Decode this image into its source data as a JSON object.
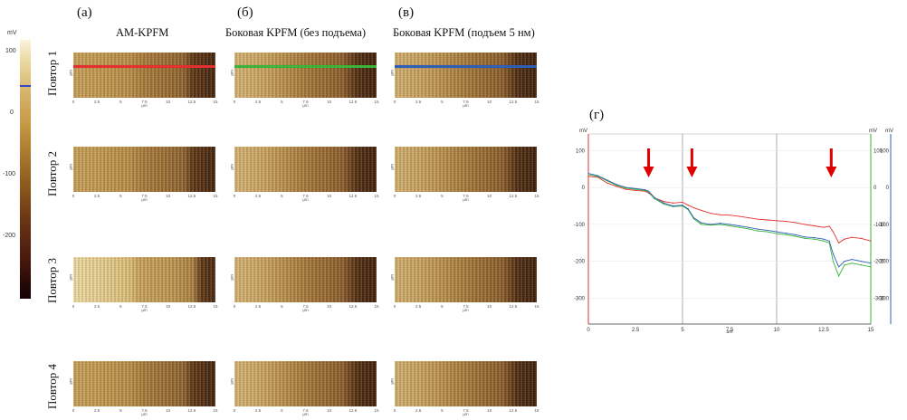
{
  "panels": {
    "a": "(а)",
    "b": "(б)",
    "c": "(в)",
    "d": "(г)"
  },
  "columns": [
    {
      "title": "AM-KPFM"
    },
    {
      "title": "Боковая KPFM (без подъема)"
    },
    {
      "title": "Боковая KPFM (подъем 5 нм)"
    }
  ],
  "rows": [
    {
      "label": "Повтор 1"
    },
    {
      "label": "Повтор 2"
    },
    {
      "label": "Повтор 3"
    },
    {
      "label": "Повтор 4"
    }
  ],
  "colorbar": {
    "unit": "mV",
    "ticks": [
      "100",
      "0",
      "-100",
      "-200"
    ],
    "values": [
      100,
      0,
      -100,
      -200
    ],
    "range": [
      -300,
      120
    ],
    "marker_value": 47,
    "marker_color": "#3344cc"
  },
  "scan_axis": {
    "unit": "μm",
    "ticks": [
      "0",
      "2.5",
      "5",
      "7.5",
      "10",
      "12.5",
      "15"
    ]
  },
  "profile_colors": [
    "#e53030",
    "#3ab53a",
    "#2f5fb8"
  ],
  "arrow_color": "#e00000",
  "chart_data": {
    "type": "line",
    "title": "(г)",
    "xlabel": "μm",
    "xlim": [
      0,
      15
    ],
    "xticks": [
      "0",
      "2.5",
      "5",
      "7.5",
      "10",
      "12.5",
      "15"
    ],
    "grid": true,
    "y_axes": [
      {
        "side": "left",
        "unit": "mV",
        "color": "#e53030",
        "ylim": [
          -370,
          145
        ],
        "ticks": [
          "100",
          "0",
          "-100",
          "-200",
          "-300"
        ]
      },
      {
        "side": "right",
        "unit": "mV",
        "color": "#3ab53a",
        "ylim": [
          -370,
          145
        ],
        "ticks": [
          "100",
          "0",
          "-100",
          "-200",
          "-300"
        ]
      },
      {
        "side": "right-outer",
        "unit": "mV",
        "color": "#2f5fb8",
        "ylim": [
          -370,
          145
        ],
        "ticks": [
          "100",
          "0",
          "-100",
          "-200",
          "-300"
        ]
      }
    ],
    "x": [
      0,
      0.5,
      1,
      1.5,
      2,
      2.5,
      3,
      3.2,
      3.5,
      4,
      4.5,
      5,
      5.3,
      5.6,
      6,
      6.5,
      7,
      7.5,
      8,
      8.5,
      9,
      9.5,
      10,
      10.5,
      11,
      11.5,
      12,
      12.5,
      12.8,
      13,
      13.3,
      13.6,
      14,
      14.5,
      15
    ],
    "series": [
      {
        "name": "AM-KPFM",
        "color": "#e53030",
        "values": [
          30,
          28,
          12,
          3,
          -5,
          -8,
          -10,
          -15,
          -28,
          -38,
          -42,
          -40,
          -48,
          -55,
          -62,
          -70,
          -74,
          -75,
          -78,
          -82,
          -86,
          -88,
          -90,
          -92,
          -95,
          -100,
          -104,
          -108,
          -105,
          -120,
          -150,
          -140,
          -135,
          -138,
          -145
        ]
      },
      {
        "name": "Боковая KPFM (без подъема)",
        "color": "#3ab53a",
        "values": [
          35,
          30,
          18,
          6,
          -2,
          -5,
          -8,
          -12,
          -30,
          -45,
          -52,
          -50,
          -60,
          -85,
          -100,
          -102,
          -100,
          -104,
          -108,
          -112,
          -118,
          -120,
          -125,
          -128,
          -132,
          -138,
          -140,
          -145,
          -150,
          -200,
          -240,
          -210,
          -205,
          -210,
          -215
        ]
      },
      {
        "name": "Боковая KPFM (подъем 5 нм)",
        "color": "#2f5fb8",
        "values": [
          38,
          32,
          20,
          8,
          0,
          -3,
          -6,
          -10,
          -27,
          -42,
          -50,
          -48,
          -58,
          -82,
          -96,
          -100,
          -97,
          -100,
          -104,
          -108,
          -113,
          -116,
          -120,
          -124,
          -128,
          -134,
          -136,
          -140,
          -145,
          -180,
          -215,
          -200,
          -195,
          -200,
          -205
        ]
      }
    ],
    "arrows_x": [
      3.2,
      5.5,
      12.9
    ]
  }
}
